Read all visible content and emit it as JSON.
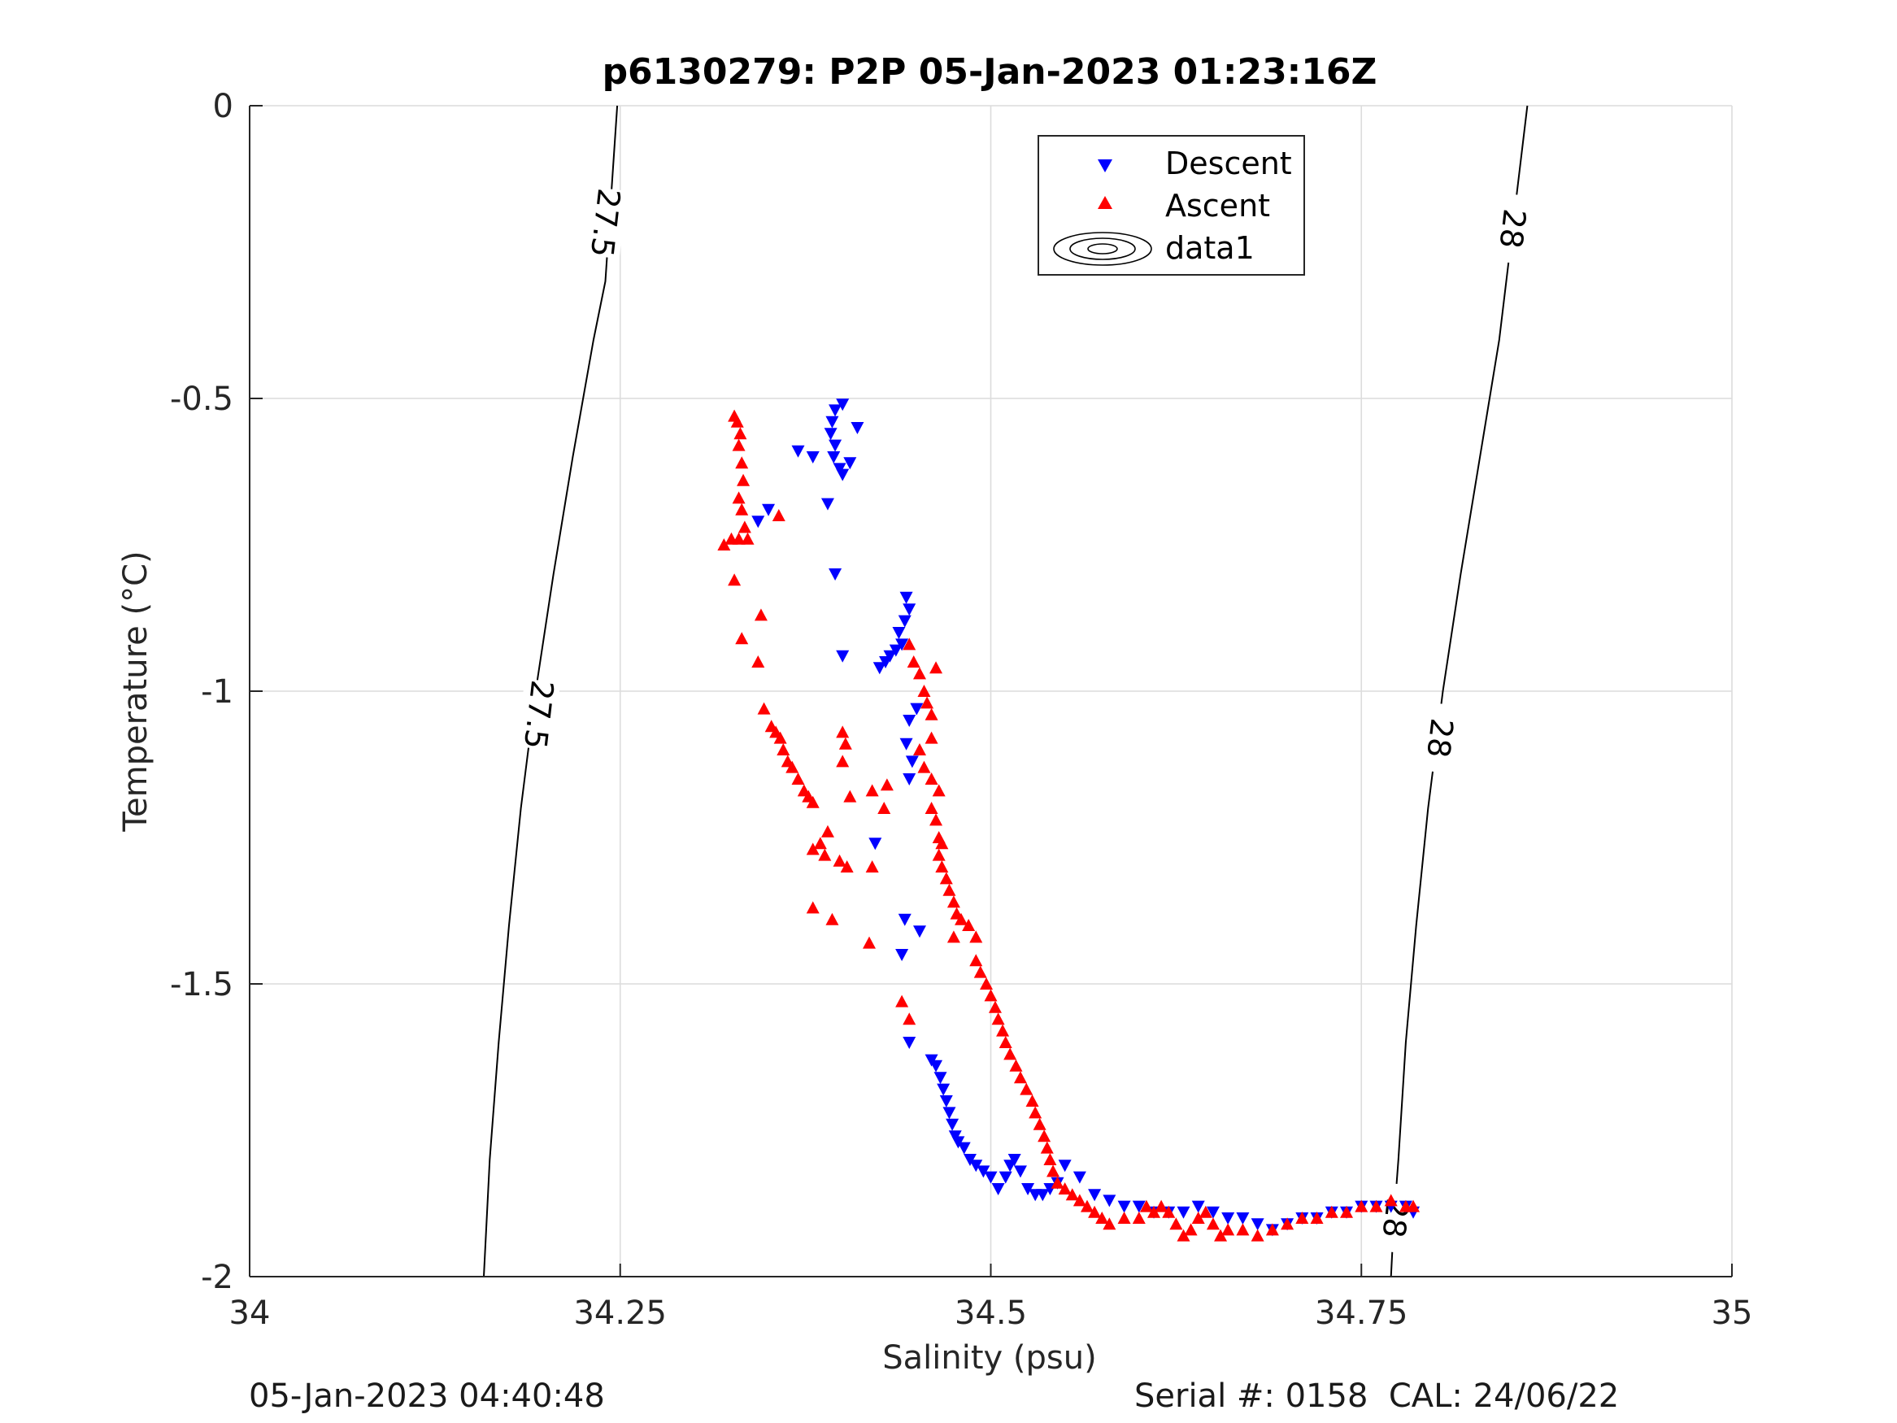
{
  "footer": {
    "timestamp": "05-Jan-2023 04:40:48",
    "serial_cal": "Serial #: 0158  CAL: 24/06/22"
  },
  "chart_data": {
    "type": "scatter",
    "title": "p6130279: P2P 05-Jan-2023 01:23:16Z",
    "xlabel": "Salinity (psu)",
    "ylabel": "Temperature (°C)",
    "xlim": [
      34,
      35
    ],
    "ylim": [
      -2,
      0
    ],
    "x_ticks": [
      34,
      34.25,
      34.5,
      34.75,
      35
    ],
    "x_tick_labels": [
      "34",
      "34.25",
      "34.5",
      "34.75",
      "35"
    ],
    "y_ticks": [
      0,
      -0.5,
      -1,
      -1.5,
      -2
    ],
    "y_tick_labels": [
      "0",
      "-0.5",
      "-1",
      "-1.5",
      "-2"
    ],
    "grid": true,
    "legend_position": "top-right",
    "colors": {
      "descent": "#0000ff",
      "ascent": "#ff0000",
      "contour": "#000000",
      "grid": "#dcdcdc"
    },
    "legend": [
      "Descent",
      "Ascent",
      "data1"
    ],
    "series": [
      {
        "name": "Descent",
        "marker": "triangle-down",
        "points": [
          [
            34.395,
            -0.52
          ],
          [
            34.4,
            -0.51
          ],
          [
            34.393,
            -0.54
          ],
          [
            34.392,
            -0.56
          ],
          [
            34.395,
            -0.58
          ],
          [
            34.41,
            -0.55
          ],
          [
            34.38,
            -0.6
          ],
          [
            34.394,
            -0.6
          ],
          [
            34.398,
            -0.62
          ],
          [
            34.405,
            -0.61
          ],
          [
            34.4,
            -0.63
          ],
          [
            34.37,
            -0.59
          ],
          [
            34.39,
            -0.68
          ],
          [
            34.35,
            -0.69
          ],
          [
            34.343,
            -0.71
          ],
          [
            34.395,
            -0.8
          ],
          [
            34.443,
            -0.84
          ],
          [
            34.445,
            -0.86
          ],
          [
            34.442,
            -0.88
          ],
          [
            34.438,
            -0.9
          ],
          [
            34.44,
            -0.92
          ],
          [
            34.436,
            -0.93
          ],
          [
            34.432,
            -0.94
          ],
          [
            34.429,
            -0.95
          ],
          [
            34.425,
            -0.96
          ],
          [
            34.4,
            -0.94
          ],
          [
            34.45,
            -1.03
          ],
          [
            34.445,
            -1.05
          ],
          [
            34.443,
            -1.09
          ],
          [
            34.447,
            -1.12
          ],
          [
            34.445,
            -1.15
          ],
          [
            34.422,
            -1.26
          ],
          [
            34.442,
            -1.39
          ],
          [
            34.452,
            -1.41
          ],
          [
            34.44,
            -1.45
          ],
          [
            34.445,
            -1.6
          ],
          [
            34.46,
            -1.63
          ],
          [
            34.463,
            -1.64
          ],
          [
            34.466,
            -1.66
          ],
          [
            34.468,
            -1.68
          ],
          [
            34.47,
            -1.7
          ],
          [
            34.472,
            -1.72
          ],
          [
            34.474,
            -1.74
          ],
          [
            34.476,
            -1.76
          ],
          [
            34.478,
            -1.77
          ],
          [
            34.482,
            -1.78
          ],
          [
            34.486,
            -1.8
          ],
          [
            34.49,
            -1.81
          ],
          [
            34.495,
            -1.82
          ],
          [
            34.5,
            -1.83
          ],
          [
            34.505,
            -1.85
          ],
          [
            34.51,
            -1.83
          ],
          [
            34.513,
            -1.81
          ],
          [
            34.516,
            -1.8
          ],
          [
            34.52,
            -1.82
          ],
          [
            34.525,
            -1.85
          ],
          [
            34.53,
            -1.86
          ],
          [
            34.535,
            -1.86
          ],
          [
            34.54,
            -1.85
          ],
          [
            34.545,
            -1.84
          ],
          [
            34.55,
            -1.81
          ],
          [
            34.56,
            -1.83
          ],
          [
            34.57,
            -1.86
          ],
          [
            34.58,
            -1.87
          ],
          [
            34.59,
            -1.88
          ],
          [
            34.6,
            -1.88
          ],
          [
            34.61,
            -1.89
          ],
          [
            34.62,
            -1.89
          ],
          [
            34.63,
            -1.89
          ],
          [
            34.64,
            -1.88
          ],
          [
            34.65,
            -1.89
          ],
          [
            34.66,
            -1.9
          ],
          [
            34.67,
            -1.9
          ],
          [
            34.68,
            -1.91
          ],
          [
            34.69,
            -1.92
          ],
          [
            34.7,
            -1.91
          ],
          [
            34.71,
            -1.9
          ],
          [
            34.72,
            -1.9
          ],
          [
            34.73,
            -1.89
          ],
          [
            34.74,
            -1.89
          ],
          [
            34.75,
            -1.88
          ],
          [
            34.76,
            -1.88
          ],
          [
            34.77,
            -1.88
          ],
          [
            34.78,
            -1.88
          ],
          [
            34.785,
            -1.89
          ]
        ]
      },
      {
        "name": "Ascent",
        "marker": "triangle-up",
        "points": [
          [
            34.327,
            -0.53
          ],
          [
            34.329,
            -0.54
          ],
          [
            34.331,
            -0.56
          ],
          [
            34.33,
            -0.58
          ],
          [
            34.332,
            -0.61
          ],
          [
            34.333,
            -0.64
          ],
          [
            34.33,
            -0.67
          ],
          [
            34.332,
            -0.69
          ],
          [
            34.334,
            -0.72
          ],
          [
            34.336,
            -0.74
          ],
          [
            34.33,
            -0.74
          ],
          [
            34.325,
            -0.74
          ],
          [
            34.32,
            -0.75
          ],
          [
            34.357,
            -0.7
          ],
          [
            34.327,
            -0.81
          ],
          [
            34.345,
            -0.87
          ],
          [
            34.332,
            -0.91
          ],
          [
            34.343,
            -0.95
          ],
          [
            34.347,
            -1.03
          ],
          [
            34.352,
            -1.06
          ],
          [
            34.355,
            -1.07
          ],
          [
            34.358,
            -1.08
          ],
          [
            34.36,
            -1.1
          ],
          [
            34.363,
            -1.12
          ],
          [
            34.366,
            -1.13
          ],
          [
            34.37,
            -1.15
          ],
          [
            34.374,
            -1.17
          ],
          [
            34.377,
            -1.18
          ],
          [
            34.38,
            -1.19
          ],
          [
            34.4,
            -1.07
          ],
          [
            34.402,
            -1.09
          ],
          [
            34.4,
            -1.12
          ],
          [
            34.405,
            -1.18
          ],
          [
            34.39,
            -1.24
          ],
          [
            34.385,
            -1.26
          ],
          [
            34.38,
            -1.27
          ],
          [
            34.388,
            -1.28
          ],
          [
            34.398,
            -1.29
          ],
          [
            34.403,
            -1.3
          ],
          [
            34.42,
            -1.3
          ],
          [
            34.38,
            -1.37
          ],
          [
            34.393,
            -1.39
          ],
          [
            34.42,
            -1.17
          ],
          [
            34.43,
            -1.16
          ],
          [
            34.428,
            -1.2
          ],
          [
            34.418,
            -1.43
          ],
          [
            34.445,
            -0.92
          ],
          [
            34.448,
            -0.95
          ],
          [
            34.452,
            -0.97
          ],
          [
            34.455,
            -1.0
          ],
          [
            34.457,
            -1.02
          ],
          [
            34.46,
            -1.04
          ],
          [
            34.463,
            -0.96
          ],
          [
            34.46,
            -1.08
          ],
          [
            34.452,
            -1.1
          ],
          [
            34.455,
            -1.13
          ],
          [
            34.46,
            -1.15
          ],
          [
            34.465,
            -1.17
          ],
          [
            34.46,
            -1.2
          ],
          [
            34.463,
            -1.22
          ],
          [
            34.465,
            -1.25
          ],
          [
            34.467,
            -1.26
          ],
          [
            34.465,
            -1.28
          ],
          [
            34.467,
            -1.3
          ],
          [
            34.47,
            -1.32
          ],
          [
            34.472,
            -1.34
          ],
          [
            34.475,
            -1.36
          ],
          [
            34.477,
            -1.38
          ],
          [
            34.48,
            -1.39
          ],
          [
            34.485,
            -1.4
          ],
          [
            34.49,
            -1.42
          ],
          [
            34.475,
            -1.42
          ],
          [
            34.44,
            -1.53
          ],
          [
            34.445,
            -1.56
          ],
          [
            34.49,
            -1.46
          ],
          [
            34.493,
            -1.48
          ],
          [
            34.497,
            -1.5
          ],
          [
            34.5,
            -1.52
          ],
          [
            34.503,
            -1.54
          ],
          [
            34.505,
            -1.56
          ],
          [
            34.508,
            -1.58
          ],
          [
            34.51,
            -1.6
          ],
          [
            34.513,
            -1.62
          ],
          [
            34.517,
            -1.64
          ],
          [
            34.52,
            -1.66
          ],
          [
            34.524,
            -1.68
          ],
          [
            34.528,
            -1.7
          ],
          [
            34.53,
            -1.72
          ],
          [
            34.533,
            -1.74
          ],
          [
            34.536,
            -1.76
          ],
          [
            34.538,
            -1.78
          ],
          [
            34.54,
            -1.8
          ],
          [
            34.542,
            -1.82
          ],
          [
            34.545,
            -1.84
          ],
          [
            34.55,
            -1.85
          ],
          [
            34.555,
            -1.86
          ],
          [
            34.56,
            -1.87
          ],
          [
            34.565,
            -1.88
          ],
          [
            34.57,
            -1.89
          ],
          [
            34.575,
            -1.9
          ],
          [
            34.58,
            -1.91
          ],
          [
            34.59,
            -1.9
          ],
          [
            34.6,
            -1.9
          ],
          [
            34.605,
            -1.88
          ],
          [
            34.61,
            -1.89
          ],
          [
            34.615,
            -1.88
          ],
          [
            34.62,
            -1.89
          ],
          [
            34.625,
            -1.91
          ],
          [
            34.63,
            -1.93
          ],
          [
            34.635,
            -1.92
          ],
          [
            34.64,
            -1.9
          ],
          [
            34.645,
            -1.89
          ],
          [
            34.65,
            -1.91
          ],
          [
            34.655,
            -1.93
          ],
          [
            34.66,
            -1.92
          ],
          [
            34.67,
            -1.92
          ],
          [
            34.68,
            -1.93
          ],
          [
            34.69,
            -1.92
          ],
          [
            34.7,
            -1.91
          ],
          [
            34.71,
            -1.9
          ],
          [
            34.72,
            -1.9
          ],
          [
            34.73,
            -1.89
          ],
          [
            34.74,
            -1.89
          ],
          [
            34.75,
            -1.88
          ],
          [
            34.76,
            -1.88
          ],
          [
            34.77,
            -1.87
          ],
          [
            34.78,
            -1.88
          ],
          [
            34.785,
            -1.88
          ]
        ]
      }
    ],
    "contours": [
      {
        "label": "27.5",
        "points": [
          [
            34.158,
            -2.0
          ],
          [
            34.162,
            -1.8
          ],
          [
            34.168,
            -1.6
          ],
          [
            34.175,
            -1.4
          ],
          [
            34.183,
            -1.2
          ],
          [
            34.193,
            -1.0
          ],
          [
            34.205,
            -0.8
          ],
          [
            34.218,
            -0.6
          ],
          [
            34.232,
            -0.4
          ],
          [
            34.24,
            -0.3
          ],
          [
            34.248,
            0.0
          ]
        ],
        "label_positions": [
          [
            34.24,
            -0.2
          ],
          [
            34.195,
            -1.04
          ]
        ]
      },
      {
        "label": "28",
        "points": [
          [
            34.77,
            -2.0
          ],
          [
            34.772,
            -1.9
          ],
          [
            34.775,
            -1.8
          ],
          [
            34.78,
            -1.6
          ],
          [
            34.787,
            -1.4
          ],
          [
            34.795,
            -1.2
          ],
          [
            34.805,
            -1.0
          ],
          [
            34.817,
            -0.8
          ],
          [
            34.83,
            -0.6
          ],
          [
            34.843,
            -0.4
          ],
          [
            34.862,
            0.0
          ]
        ],
        "label_positions": [
          [
            34.852,
            -0.21
          ],
          [
            34.803,
            -1.08
          ],
          [
            34.773,
            -1.9
          ]
        ]
      }
    ]
  }
}
